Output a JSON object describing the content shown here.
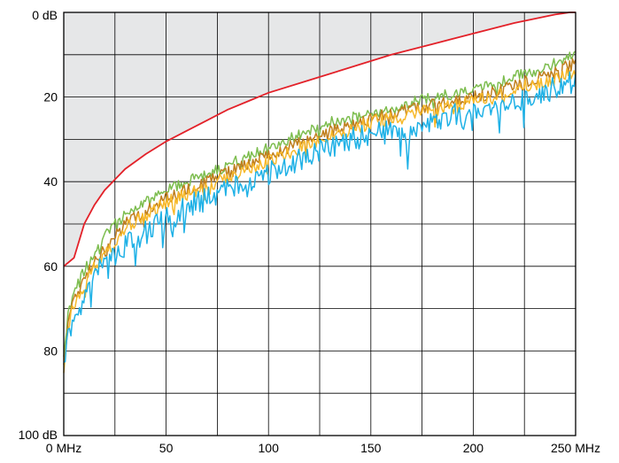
{
  "chart_data": {
    "type": "line",
    "title": "",
    "xlabel": "",
    "ylabel": "",
    "xlim": [
      0,
      250
    ],
    "ylim": [
      0,
      100
    ],
    "y_inverted": true,
    "grid": true,
    "legend": "none",
    "x_ticks": [
      0,
      50,
      100,
      150,
      200,
      250
    ],
    "x_tick_labels": [
      "0 MHz",
      "50",
      "100",
      "150",
      "200",
      "250 MHz"
    ],
    "y_ticks": [
      0,
      20,
      40,
      60,
      80,
      100
    ],
    "y_tick_labels": [
      "0 dB",
      "20",
      "40",
      "60",
      "80",
      "100 dB"
    ],
    "shaded_region": "above-limit-line",
    "colors": {
      "background": "#ffffff",
      "shaded": "#e6e7e8",
      "grid": "#000000",
      "limit": "#e32129",
      "series_green": "#7dbd4f",
      "series_brown": "#c07f1e",
      "series_yellow": "#f7b92b",
      "series_cyan": "#1fb1e6"
    },
    "limit_line": {
      "x": [
        0,
        5,
        10,
        15,
        20,
        25,
        30,
        40,
        50,
        60,
        70,
        80,
        90,
        100,
        120,
        140,
        160,
        180,
        200,
        220,
        240,
        247,
        250
      ],
      "y": [
        60,
        58,
        50,
        45.5,
        42,
        39.5,
        37,
        33.5,
        30.5,
        28,
        25.5,
        23,
        21,
        19,
        16,
        13,
        10,
        7.5,
        5,
        2.5,
        0.5,
        0,
        0
      ]
    },
    "series": [
      {
        "color": "#7dbd4f",
        "x": [
          0,
          2,
          5,
          10,
          15,
          20,
          25,
          30,
          40,
          50,
          60,
          70,
          80,
          90,
          100,
          110,
          120,
          130,
          140,
          150,
          160,
          170,
          180,
          190,
          200,
          210,
          220,
          230,
          240,
          245,
          250
        ],
        "y": [
          82,
          72,
          66,
          61,
          57,
          53,
          50,
          48,
          45,
          42,
          40,
          38,
          36,
          34,
          32,
          30,
          28,
          26,
          25,
          24,
          23,
          21,
          20,
          19,
          18,
          17,
          15,
          14,
          12,
          11,
          9
        ]
      },
      {
        "color": "#c07f1e",
        "x": [
          0,
          2,
          5,
          10,
          15,
          20,
          25,
          30,
          40,
          50,
          60,
          70,
          80,
          90,
          100,
          110,
          120,
          130,
          140,
          150,
          160,
          170,
          180,
          190,
          200,
          210,
          220,
          230,
          240,
          245,
          250
        ],
        "y": [
          84,
          74,
          68,
          63,
          59,
          56,
          53,
          50,
          47,
          44,
          42,
          40,
          38,
          36,
          34,
          32,
          30,
          28,
          27,
          25,
          24,
          23,
          22,
          21,
          20,
          19,
          17,
          16,
          14,
          13,
          12
        ]
      },
      {
        "color": "#f7b92b",
        "x": [
          0,
          2,
          5,
          10,
          15,
          20,
          25,
          30,
          40,
          50,
          60,
          70,
          80,
          90,
          100,
          110,
          120,
          130,
          140,
          150,
          160,
          170,
          180,
          190,
          200,
          210,
          220,
          230,
          240,
          245,
          250
        ],
        "y": [
          86,
          75,
          69,
          64,
          60,
          57,
          54,
          51,
          48,
          45,
          43,
          41,
          39,
          37,
          35,
          33,
          31,
          29,
          28,
          26,
          25,
          24,
          23,
          22,
          21,
          20,
          18,
          17,
          16,
          15,
          14
        ]
      },
      {
        "color": "#1fb1e6",
        "x": [
          0,
          2,
          5,
          10,
          15,
          20,
          25,
          30,
          40,
          50,
          60,
          70,
          80,
          90,
          100,
          110,
          120,
          130,
          140,
          150,
          160,
          170,
          180,
          190,
          200,
          210,
          220,
          230,
          240,
          245,
          250
        ],
        "y": [
          84,
          76,
          72,
          67,
          63,
          59,
          57,
          55,
          52,
          49,
          46,
          44,
          42,
          40,
          38,
          36,
          34,
          32,
          30,
          29,
          28,
          27,
          26,
          24,
          23,
          22,
          21,
          19,
          18,
          17,
          16
        ]
      }
    ],
    "annotations": [
      {
        "series": 3,
        "x": 53,
        "y": 54
      },
      {
        "series": 3,
        "x": 88,
        "y": 42
      },
      {
        "series": 3,
        "x": 121,
        "y": 36
      },
      {
        "series": 3,
        "x": 168,
        "y": 37
      },
      {
        "series": 3,
        "x": 195,
        "y": 29
      }
    ]
  }
}
